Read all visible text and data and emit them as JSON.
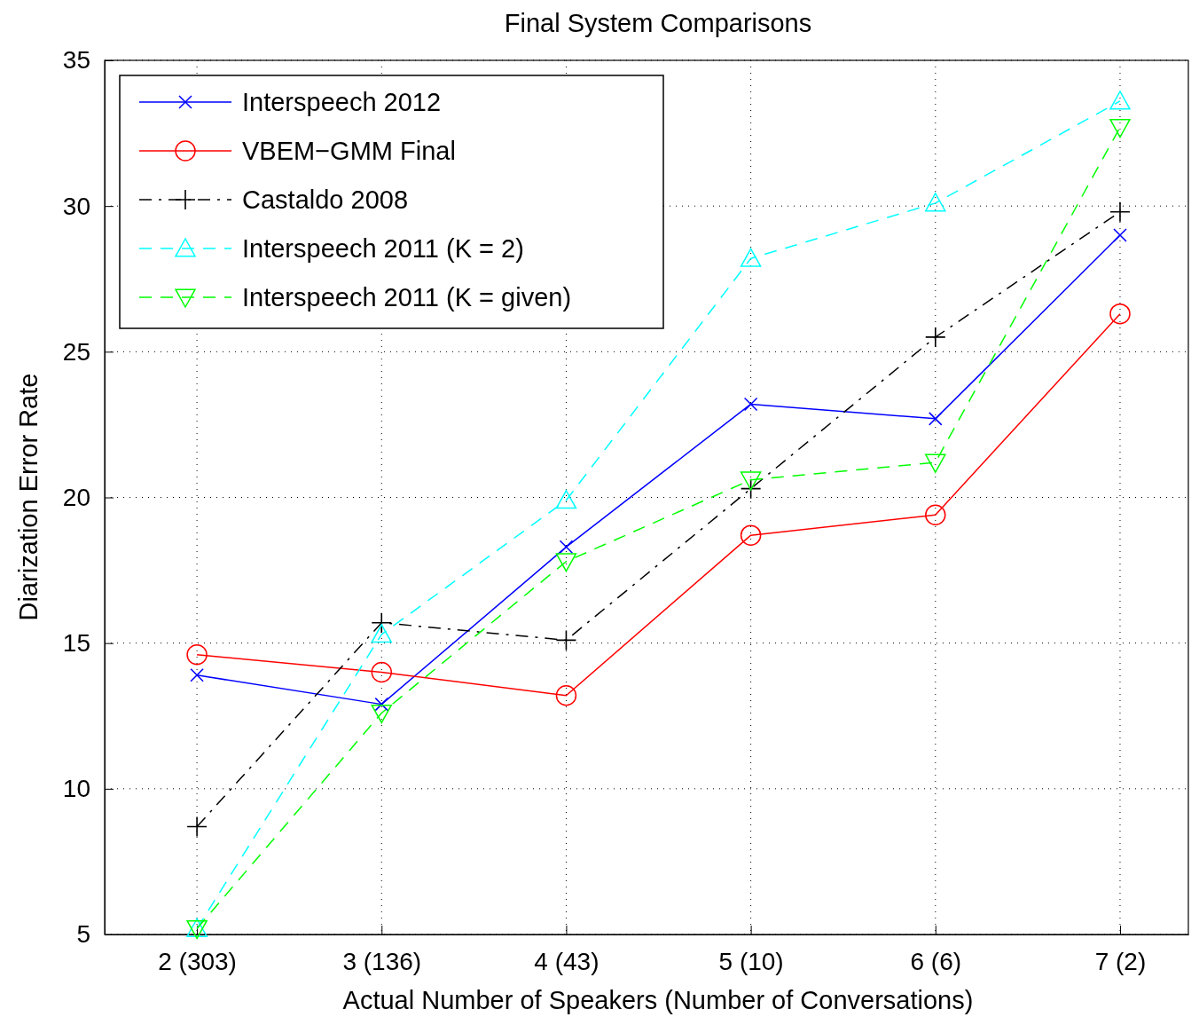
{
  "chart_data": {
    "type": "line",
    "title": "Final System Comparisons",
    "xlabel": "Actual Number of Speakers (Number of Conversations)",
    "ylabel": "Diarization Error Rate",
    "categories": [
      "2 (303)",
      "3 (136)",
      "4 (43)",
      "5 (10)",
      "6 (6)",
      "7 (2)"
    ],
    "ylim": [
      5,
      35
    ],
    "yticks": [
      5,
      10,
      15,
      20,
      25,
      30,
      35
    ],
    "grid": true,
    "legend": "top left",
    "series": [
      {
        "name": "Interspeech 2012",
        "color": "#0000ff",
        "marker": "x",
        "line_style": "solid",
        "values": [
          13.9,
          12.9,
          18.3,
          23.2,
          22.7,
          29.0
        ]
      },
      {
        "name": "VBEM−GMM Final",
        "color": "#ff0000",
        "marker": "circle",
        "line_style": "solid",
        "values": [
          14.6,
          14.0,
          13.2,
          18.7,
          19.4,
          26.3
        ]
      },
      {
        "name": "Castaldo 2008",
        "color": "#000000",
        "marker": "cross",
        "line_style": "dashdot",
        "values": [
          8.7,
          15.7,
          15.1,
          20.3,
          25.5,
          29.8
        ]
      },
      {
        "name": "Interspeech 2011 (K = 2)",
        "color": "#00ffff",
        "marker": "triangle",
        "line_style": "dashed",
        "values": [
          5.2,
          15.3,
          19.9,
          28.2,
          30.1,
          33.6
        ]
      },
      {
        "name": "Interspeech 2011 (K = given)",
        "color": "#00ff00",
        "marker": "triangle-down",
        "line_style": "dashed",
        "values": [
          5.2,
          12.6,
          17.8,
          20.6,
          21.2,
          32.7
        ]
      }
    ]
  }
}
